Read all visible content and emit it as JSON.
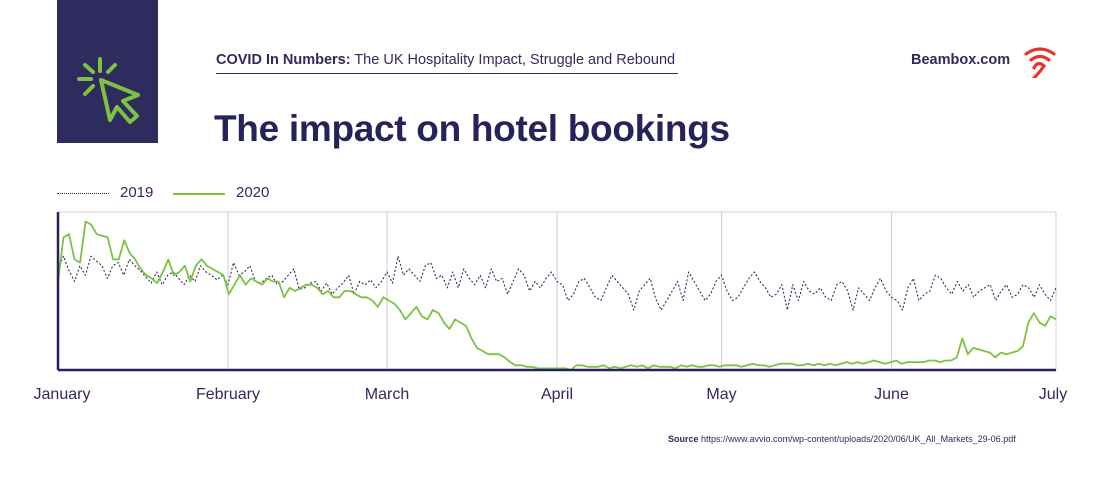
{
  "header": {
    "series_label": "COVID In Numbers:",
    "subtitle": "The UK Hospitality Impact, Struggle and Rebound"
  },
  "brand": {
    "name": "Beambox.com",
    "icon": "wifi-signal-icon",
    "icon_color": "#e8332a"
  },
  "logo": {
    "icon": "cursor-click-icon",
    "bg_color": "#2e2c5e",
    "icon_color": "#7ec242"
  },
  "source": {
    "label": "Source",
    "url": "https://www.avvio.com/wp-content/uploads/2020/06/UK_All_Markets_29-06.pdf"
  },
  "chart_data": {
    "type": "line",
    "title": "The impact on hotel bookings",
    "xlabel": "",
    "ylabel": "",
    "x_tick_labels": [
      "January",
      "February",
      "March",
      "April",
      "May",
      "June",
      "July"
    ],
    "xlim": [
      0,
      182
    ],
    "ylim": [
      0,
      100
    ],
    "grid": "vertical",
    "legend": "top-left",
    "series": [
      {
        "name": "2019",
        "style": "dotted",
        "color": "#2e2c5e",
        "values": [
          64,
          72,
          63,
          56,
          66,
          60,
          72,
          69,
          66,
          58,
          66,
          68,
          60,
          70,
          66,
          63,
          59,
          55,
          62,
          54,
          60,
          62,
          58,
          54,
          60,
          56,
          66,
          62,
          60,
          57,
          60,
          54,
          68,
          60,
          62,
          66,
          56,
          55,
          58,
          60,
          54,
          56,
          60,
          64,
          51,
          52,
          55,
          56,
          50,
          55,
          48,
          52,
          55,
          60,
          48,
          56,
          54,
          57,
          52,
          56,
          62,
          55,
          72,
          60,
          64,
          60,
          56,
          66,
          68,
          58,
          60,
          52,
          62,
          52,
          64,
          58,
          54,
          60,
          52,
          64,
          56,
          58,
          48,
          56,
          64,
          60,
          50,
          56,
          52,
          58,
          62,
          56,
          54,
          44,
          48,
          56,
          58,
          52,
          46,
          44,
          52,
          60,
          56,
          52,
          48,
          38,
          50,
          54,
          58,
          45,
          38,
          44,
          50,
          56,
          44,
          62,
          56,
          50,
          44,
          48,
          56,
          60,
          50,
          44,
          46,
          52,
          58,
          62,
          56,
          52,
          46,
          48,
          54,
          38,
          54,
          44,
          56,
          50,
          48,
          52,
          46,
          44,
          54,
          56,
          50,
          38,
          52,
          48,
          44,
          52,
          58,
          50,
          46,
          44,
          38,
          52,
          58,
          44,
          48,
          50,
          60,
          58,
          52,
          48,
          56,
          50,
          54,
          46,
          50,
          52,
          54,
          44,
          50,
          54,
          46,
          48,
          54,
          52,
          46,
          54,
          48,
          44,
          52
        ]
      },
      {
        "name": "2020",
        "style": "solid",
        "color": "#7ec242",
        "values": [
          56,
          84,
          86,
          70,
          68,
          94,
          92,
          86,
          85,
          84,
          70,
          70,
          82,
          74,
          70,
          64,
          60,
          58,
          55,
          62,
          70,
          60,
          62,
          66,
          56,
          66,
          70,
          66,
          64,
          62,
          60,
          48,
          54,
          60,
          54,
          58,
          56,
          54,
          58,
          56,
          56,
          46,
          52,
          50,
          52,
          54,
          54,
          52,
          48,
          50,
          46,
          46,
          50,
          50,
          48,
          46,
          46,
          44,
          40,
          46,
          44,
          42,
          38,
          32,
          36,
          40,
          34,
          32,
          38,
          36,
          30,
          26,
          32,
          30,
          28,
          20,
          14,
          12,
          10,
          10,
          10,
          8,
          5,
          3,
          3,
          2,
          2,
          1,
          1,
          1,
          1,
          1,
          1,
          0,
          3,
          3,
          2,
          2,
          2,
          3,
          1,
          2,
          1,
          2,
          3,
          2,
          3,
          1,
          3,
          2,
          2,
          2,
          1,
          3,
          2,
          3,
          2,
          2,
          3,
          3,
          2,
          3,
          3,
          3,
          2,
          3,
          4,
          3,
          3,
          2,
          3,
          4,
          4,
          4,
          3,
          3,
          4,
          3,
          4,
          3,
          4,
          3,
          4,
          5,
          4,
          5,
          4,
          5,
          6,
          5,
          4,
          5,
          6,
          4,
          5,
          5,
          5,
          5,
          6,
          6,
          5,
          6,
          6,
          8,
          20,
          10,
          14,
          13,
          12,
          11,
          8,
          11,
          10,
          11,
          12,
          15,
          30,
          36,
          30,
          28,
          34,
          32
        ]
      }
    ]
  }
}
